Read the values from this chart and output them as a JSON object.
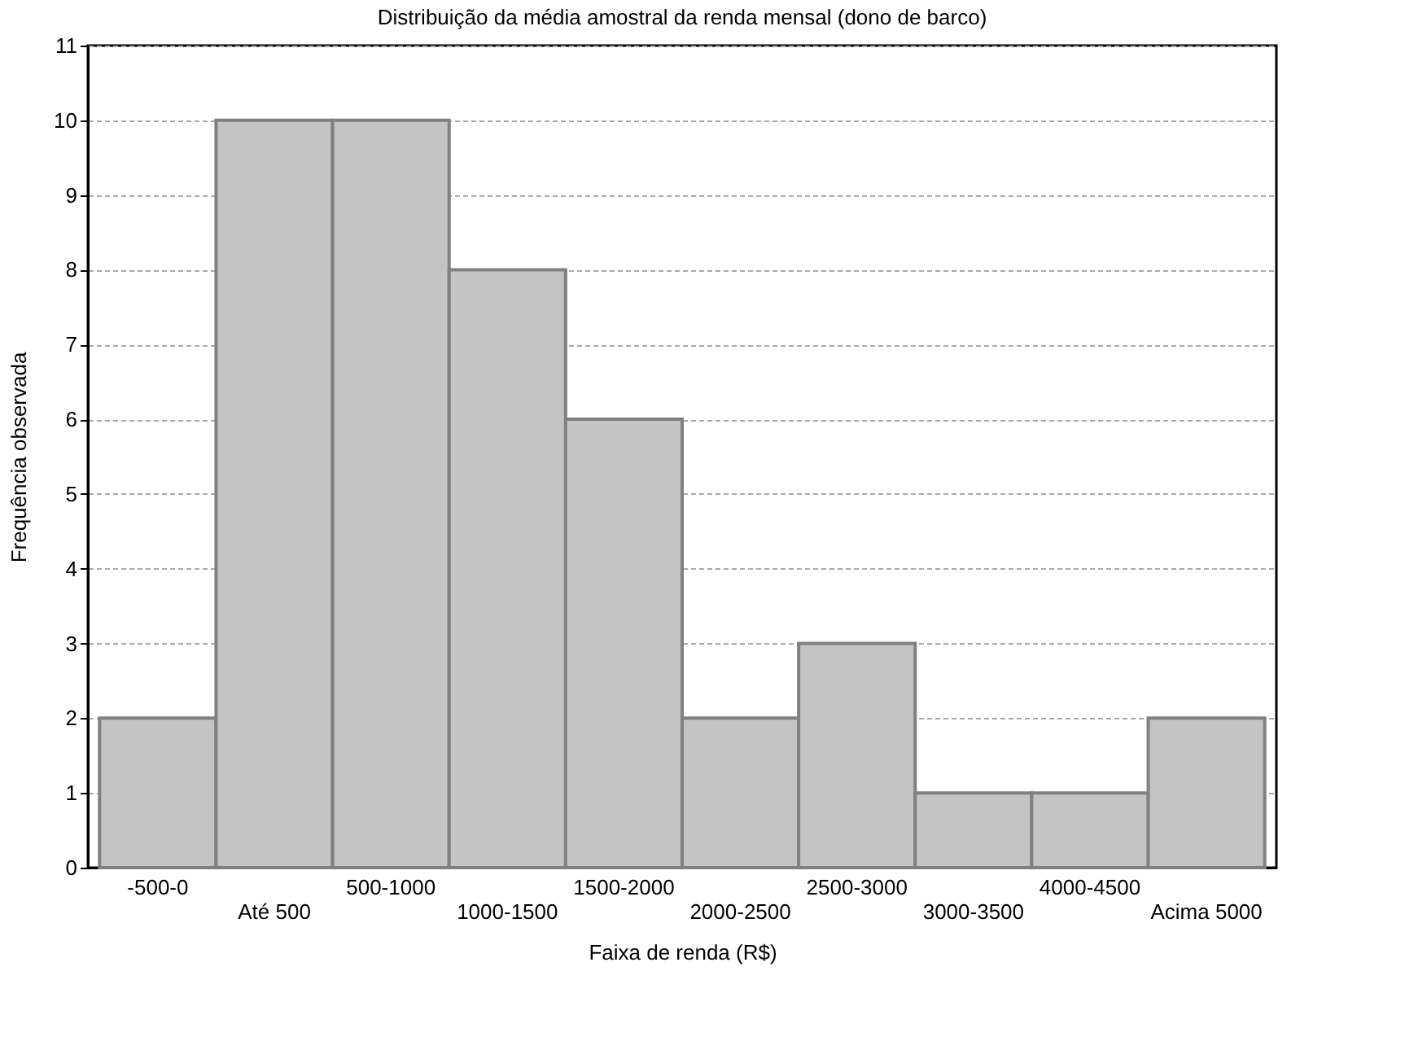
{
  "chart_data": {
    "type": "bar",
    "title": "Distribuição da média amostral da renda mensal (dono de barco)",
    "xlabel": "Faixa de renda (R$)",
    "ylabel": "Frequência observada",
    "categories": [
      "-500-0",
      "Até 500",
      "500-1000",
      "1000-1500",
      "1500-2000",
      "2000-2500",
      "2500-3000",
      "3000-3500",
      "4000-4500",
      "Acima 5000"
    ],
    "values": [
      2,
      10,
      10,
      8,
      6,
      2,
      3,
      1,
      1,
      2
    ],
    "color": "#c4c4c4",
    "ylim": [
      0,
      11
    ],
    "yticks": [
      0,
      1,
      2,
      3,
      4,
      5,
      6,
      7,
      8,
      9,
      10,
      11
    ],
    "grid": "y"
  }
}
